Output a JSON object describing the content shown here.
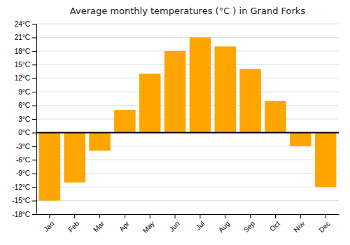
{
  "chart_data": {
    "type": "bar",
    "title": "Average monthly temperatures (°C ) in Grand Forks",
    "categories": [
      "Jan",
      "Feb",
      "Mar",
      "Apr",
      "May",
      "Jun",
      "Jul",
      "Aug",
      "Sep",
      "Oct",
      "Nov",
      "Dec"
    ],
    "values": [
      -15,
      -11,
      -4,
      5,
      13,
      18,
      21,
      19,
      14,
      7,
      -3,
      -12
    ],
    "color": "#FFA500",
    "ylim": [
      -18,
      24
    ],
    "yticks": [
      {
        "value": -18,
        "label": "-18°C"
      },
      {
        "value": -15,
        "label": "-15°C"
      },
      {
        "value": -12,
        "label": "-12°C"
      },
      {
        "value": -9,
        "label": "-9°C"
      },
      {
        "value": -6,
        "label": "-6°C"
      },
      {
        "value": -3,
        "label": "-3°C"
      },
      {
        "value": 0,
        "label": "0°C"
      },
      {
        "value": 3,
        "label": "3°C"
      },
      {
        "value": 6,
        "label": "6°C"
      },
      {
        "value": 9,
        "label": "9°C"
      },
      {
        "value": 12,
        "label": "12°C"
      },
      {
        "value": 15,
        "label": "15°C"
      },
      {
        "value": 18,
        "label": "18°C"
      },
      {
        "value": 21,
        "label": "21°C"
      },
      {
        "value": 24,
        "label": "24°C"
      }
    ],
    "grid": true
  }
}
